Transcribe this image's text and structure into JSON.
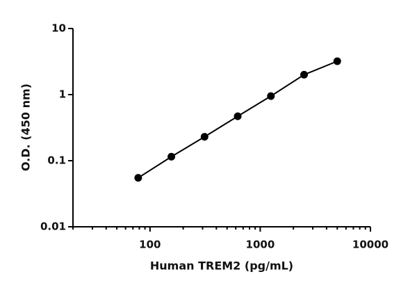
{
  "chart_data": {
    "type": "scatter-line",
    "x_label": "Human TREM2 (pg/mL)",
    "y_label": "O.D. (450 nm)",
    "x": [
      78.125,
      156.25,
      312.5,
      625,
      1250,
      2500,
      5000
    ],
    "series": [
      {
        "color": "#000000",
        "values": [
          0.055,
          0.115,
          0.23,
          0.47,
          0.95,
          2.0,
          3.2
        ]
      }
    ],
    "xscale": "log",
    "yscale": "log",
    "xlim": [
      20,
      10000
    ],
    "ylim": [
      0.01,
      10
    ],
    "xticks": [
      100,
      1000,
      10000
    ],
    "xminorticks": [
      20,
      30,
      40,
      50,
      60,
      70,
      80,
      90,
      200,
      300,
      400,
      500,
      600,
      700,
      800,
      900,
      2000,
      3000,
      4000,
      5000,
      6000,
      7000,
      8000,
      9000
    ],
    "yticks": [
      0.01,
      0.1,
      1,
      10
    ],
    "grid": false
  }
}
